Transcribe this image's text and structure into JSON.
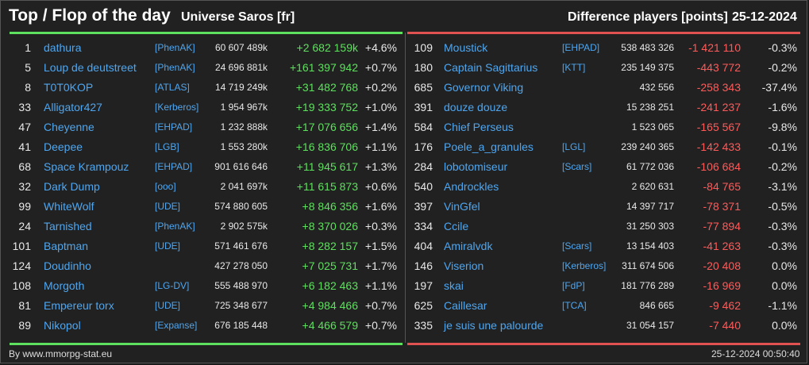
{
  "header": {
    "title": "Top / Flop of the day",
    "universe": "Universe Saros [fr]",
    "difference": "Difference players [points]",
    "date": "25-12-2024"
  },
  "colors": {
    "positive": "#5de05d",
    "negative": "#ff5a5a",
    "link": "#4ea6f0"
  },
  "top": [
    {
      "rank": "1",
      "name": "dathura",
      "ally": "[PhenAK]",
      "points": "60 607 489k",
      "delta": "+2 682 159k",
      "pct": "+4.6%"
    },
    {
      "rank": "5",
      "name": "Loup de deutstreet",
      "ally": "[PhenAK]",
      "points": "24 696 881k",
      "delta": "+161 397 942",
      "pct": "+0.7%"
    },
    {
      "rank": "8",
      "name": "T0T0KOP",
      "ally": "[ATLAS]",
      "points": "14 719 249k",
      "delta": "+31 482 768",
      "pct": "+0.2%"
    },
    {
      "rank": "33",
      "name": "Alligator427",
      "ally": "[Kerberos]",
      "points": "1 954 967k",
      "delta": "+19 333 752",
      "pct": "+1.0%"
    },
    {
      "rank": "47",
      "name": "Cheyenne",
      "ally": "[EHPAD]",
      "points": "1 232 888k",
      "delta": "+17 076 656",
      "pct": "+1.4%"
    },
    {
      "rank": "41",
      "name": "Deepee",
      "ally": "[LGB]",
      "points": "1 553 280k",
      "delta": "+16 836 706",
      "pct": "+1.1%"
    },
    {
      "rank": "68",
      "name": "Space Krampouz",
      "ally": "[EHPAD]",
      "points": "901 616 646",
      "delta": "+11 945 617",
      "pct": "+1.3%"
    },
    {
      "rank": "32",
      "name": "Dark Dump",
      "ally": "[ooo]",
      "points": "2 041 697k",
      "delta": "+11 615 873",
      "pct": "+0.6%"
    },
    {
      "rank": "99",
      "name": "WhiteWolf",
      "ally": "[UDE]",
      "points": "574 880 605",
      "delta": "+8 846 356",
      "pct": "+1.6%"
    },
    {
      "rank": "24",
      "name": "Tarnished",
      "ally": "[PhenAK]",
      "points": "2 902 575k",
      "delta": "+8 370 026",
      "pct": "+0.3%"
    },
    {
      "rank": "101",
      "name": "Baptman",
      "ally": "[UDE]",
      "points": "571 461 676",
      "delta": "+8 282 157",
      "pct": "+1.5%"
    },
    {
      "rank": "124",
      "name": "Doudinho",
      "ally": "",
      "points": "427 278 050",
      "delta": "+7 025 731",
      "pct": "+1.7%"
    },
    {
      "rank": "108",
      "name": "Morgoth",
      "ally": "[LG-DV]",
      "points": "555 488 970",
      "delta": "+6 182 463",
      "pct": "+1.1%"
    },
    {
      "rank": "81",
      "name": "Empereur torx",
      "ally": "[UDE]",
      "points": "725 348 677",
      "delta": "+4 984 466",
      "pct": "+0.7%"
    },
    {
      "rank": "89",
      "name": "Nikopol",
      "ally": "[Expanse]",
      "points": "676 185 448",
      "delta": "+4 466 579",
      "pct": "+0.7%"
    }
  ],
  "flop": [
    {
      "rank": "109",
      "name": "Moustick",
      "ally": "[EHPAD]",
      "points": "538 483 326",
      "delta": "-1 421 110",
      "pct": "-0.3%"
    },
    {
      "rank": "180",
      "name": "Captain Sagittarius",
      "ally": "[KTT]",
      "points": "235 149 375",
      "delta": "-443 772",
      "pct": "-0.2%"
    },
    {
      "rank": "685",
      "name": "Governor Viking",
      "ally": "",
      "points": "432 556",
      "delta": "-258 343",
      "pct": "-37.4%"
    },
    {
      "rank": "391",
      "name": "douze douze",
      "ally": "",
      "points": "15 238 251",
      "delta": "-241 237",
      "pct": "-1.6%"
    },
    {
      "rank": "584",
      "name": "Chief Perseus",
      "ally": "",
      "points": "1 523 065",
      "delta": "-165 567",
      "pct": "-9.8%"
    },
    {
      "rank": "176",
      "name": "Poele_a_granules",
      "ally": "[LGL]",
      "points": "239 240 365",
      "delta": "-142 433",
      "pct": "-0.1%"
    },
    {
      "rank": "284",
      "name": "lobotomiseur",
      "ally": "[Scars]",
      "points": "61 772 036",
      "delta": "-106 684",
      "pct": "-0.2%"
    },
    {
      "rank": "540",
      "name": "Androckles",
      "ally": "",
      "points": "2 620 631",
      "delta": "-84 765",
      "pct": "-3.1%"
    },
    {
      "rank": "397",
      "name": "VinGfel",
      "ally": "",
      "points": "14 397 717",
      "delta": "-78 371",
      "pct": "-0.5%"
    },
    {
      "rank": "334",
      "name": "Ccile",
      "ally": "",
      "points": "31 250 303",
      "delta": "-77 894",
      "pct": "-0.3%"
    },
    {
      "rank": "404",
      "name": "Amiralvdk",
      "ally": "[Scars]",
      "points": "13 154 403",
      "delta": "-41 263",
      "pct": "-0.3%"
    },
    {
      "rank": "146",
      "name": "Viserion",
      "ally": "[Kerberos]",
      "points": "311 674 506",
      "delta": "-20 408",
      "pct": "0.0%"
    },
    {
      "rank": "197",
      "name": "skai",
      "ally": "[FdP]",
      "points": "181 776 289",
      "delta": "-16 969",
      "pct": "0.0%"
    },
    {
      "rank": "625",
      "name": "Caillesar",
      "ally": "[TCA]",
      "points": "846 665",
      "delta": "-9 462",
      "pct": "-1.1%"
    },
    {
      "rank": "335",
      "name": "je suis une palourde",
      "ally": "",
      "points": "31 054 157",
      "delta": "-7 440",
      "pct": "0.0%"
    }
  ],
  "footer": {
    "credit": "By www.mmorpg-stat.eu",
    "timestamp": "25-12-2024 00:50:40"
  }
}
